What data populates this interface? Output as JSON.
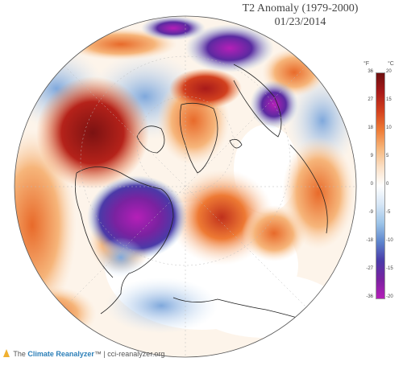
{
  "header": {
    "title": "T2 Anomaly (1979-2000)",
    "date": "01/23/2014"
  },
  "legend": {
    "unit_f": "°F",
    "unit_c": "°C",
    "ticks_f": [
      "36",
      "27",
      "18",
      "9",
      "0",
      "-9",
      "-18",
      "-27",
      "-36"
    ],
    "ticks_c": [
      "20",
      "15",
      "10",
      "5",
      "0",
      "-5",
      "-10",
      "-15",
      "-20"
    ],
    "colors": [
      "#6e1010",
      "#a81a1a",
      "#d2401e",
      "#ee7a34",
      "#f6b57a",
      "#fbe0c6",
      "#ffffff",
      "#d6e6f6",
      "#9cc4e8",
      "#5d84cc",
      "#4a3aa8",
      "#7a22a0",
      "#b51fb8"
    ]
  },
  "footer": {
    "prefix": "The",
    "brand": "Climate Reanalyzer",
    "trademark": "™",
    "separator": "|",
    "site": "cci-reanalyzer.org"
  }
}
